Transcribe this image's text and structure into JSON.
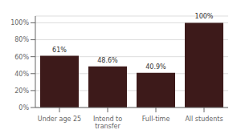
{
  "chart_data": {
    "type": "bar",
    "categories": [
      "Under age 25",
      "Intend to transfer",
      "Full-time",
      "All students"
    ],
    "values": [
      61,
      48.6,
      40.9,
      100
    ],
    "value_labels": [
      "61%",
      "48.6%",
      "40.9%",
      "100%"
    ],
    "color": "#3d1a1a",
    "ylim": [
      0,
      108
    ],
    "yticks": [
      {
        "value": 0,
        "label": "0%"
      },
      {
        "value": 20,
        "label": "20%"
      },
      {
        "value": 40,
        "label": "40%"
      },
      {
        "value": 60,
        "label": "60%"
      },
      {
        "value": 80,
        "label": "80%"
      },
      {
        "value": 100,
        "label": "100%"
      }
    ],
    "grid": true,
    "data_labels": true
  }
}
